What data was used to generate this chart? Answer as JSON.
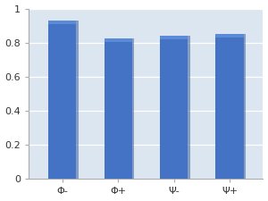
{
  "categories": [
    "Φ-",
    "Φ+",
    "Ψ-",
    "Ψ+"
  ],
  "values": [
    0.91,
    0.805,
    0.82,
    0.832
  ],
  "bar_color": "#4472C4",
  "bar_top_color": "#5B8BD8",
  "bar_dark_color": "#2F5597",
  "ylim": [
    0,
    1.0
  ],
  "yticks": [
    0,
    0.2,
    0.4,
    0.6,
    0.8,
    1.0
  ],
  "ytick_labels": [
    "0",
    "0.2",
    "0.4",
    "0.6",
    "0.8",
    "1"
  ],
  "bar_width": 0.5,
  "background_color": "#DCE6F1",
  "plot_bg_color": "#DCE6F1",
  "fig_bg_color": "#FFFFFF",
  "grid_color": "#FFFFFF",
  "tick_fontsize": 8,
  "spine_color": "#AAAAAA"
}
